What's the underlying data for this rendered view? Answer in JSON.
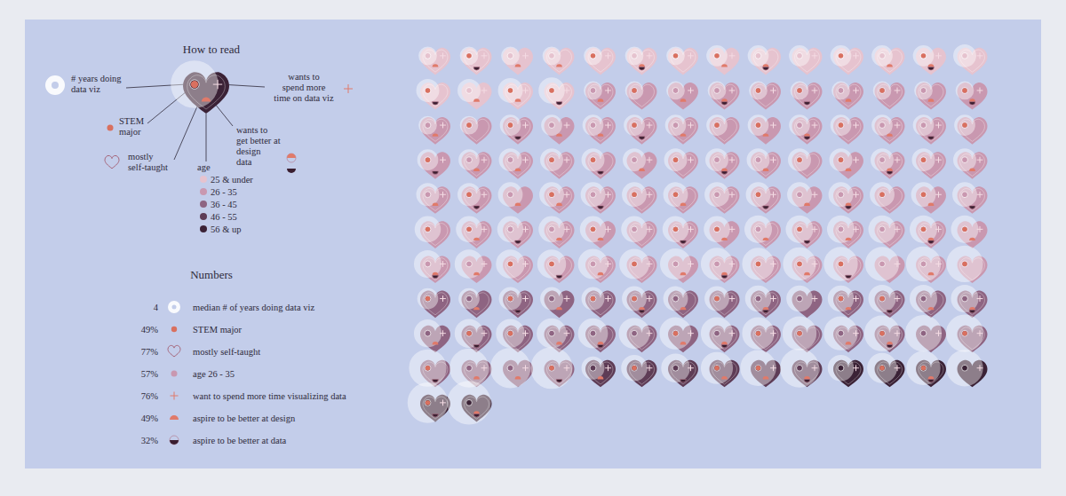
{
  "chart_data": {
    "type": "glyph_grid",
    "how_to_read": {
      "title": "How to read",
      "years": [
        "# years doing",
        "data viz"
      ],
      "stem": [
        "STEM",
        "major"
      ],
      "self_taught": [
        "mostly",
        "self-taught"
      ],
      "more_time": [
        "wants to",
        "spend more",
        "time on data viz"
      ],
      "better": [
        "wants to",
        "get better at",
        "design",
        "data"
      ],
      "age": "age",
      "age_groups": [
        {
          "label": "25 & under",
          "color": "#e6c3cf"
        },
        {
          "label": "26 - 35",
          "color": "#c998b0"
        },
        {
          "label": "36 - 45",
          "color": "#8e6482"
        },
        {
          "label": "46 - 55",
          "color": "#5e3c56"
        },
        {
          "label": "56 & up",
          "color": "#3b2236"
        }
      ]
    },
    "numbers": {
      "title": "Numbers",
      "rows": [
        {
          "value": 4,
          "label": "median # of years doing data viz"
        },
        {
          "value": 49,
          "value_label": "49%",
          "label": "STEM major"
        },
        {
          "value": 77,
          "value_label": "77%",
          "label": "mostly self-taught"
        },
        {
          "value": 57,
          "value_label": "57%",
          "label": "age 26 - 35"
        },
        {
          "value": 76,
          "value_label": "76%",
          "label": "want to spend more time visualizing data"
        },
        {
          "value": 49,
          "value_label": "49%",
          "label": "aspire to be better at design"
        },
        {
          "value": 32,
          "value_label": "32%",
          "label": "aspire to be better at data"
        }
      ]
    },
    "respondents": {
      "age": [
        0,
        0,
        0,
        0,
        0,
        0,
        0,
        0,
        0,
        0,
        0,
        0,
        0,
        0,
        0,
        0,
        0,
        0,
        1,
        1,
        1,
        1,
        1,
        1,
        1,
        1,
        1,
        1,
        1,
        1,
        1,
        1,
        1,
        1,
        1,
        1,
        1,
        1,
        1,
        1,
        1,
        1,
        1,
        1,
        1,
        1,
        1,
        1,
        1,
        1,
        1,
        1,
        1,
        1,
        1,
        1,
        1,
        1,
        1,
        1,
        1,
        1,
        1,
        1,
        1,
        1,
        1,
        1,
        1,
        1,
        1,
        1,
        1,
        1,
        1,
        1,
        1,
        1,
        1,
        1,
        1,
        1,
        1,
        1,
        1,
        1,
        1,
        1,
        1,
        1,
        1,
        1,
        1,
        1,
        1,
        1,
        1,
        1,
        2,
        2,
        2,
        2,
        2,
        2,
        2,
        2,
        2,
        2,
        2,
        2,
        2,
        2,
        2,
        2,
        2,
        2,
        2,
        2,
        2,
        2,
        2,
        2,
        2,
        2,
        2,
        2,
        2,
        2,
        2,
        2,
        3,
        3,
        3,
        3,
        3,
        3,
        4,
        4,
        4,
        4,
        4,
        4
      ],
      "years": [
        1,
        1,
        1,
        1,
        1,
        1,
        1,
        2,
        2,
        2,
        2,
        2,
        2,
        3,
        3,
        3,
        4,
        5,
        1,
        1,
        1,
        1,
        1,
        1,
        1,
        1,
        1,
        1,
        1,
        1,
        2,
        2,
        2,
        2,
        2,
        2,
        2,
        2,
        2,
        2,
        2,
        2,
        2,
        2,
        3,
        3,
        3,
        3,
        3,
        3,
        3,
        3,
        3,
        3,
        3,
        3,
        3,
        3,
        4,
        4,
        4,
        4,
        4,
        4,
        4,
        4,
        4,
        4,
        4,
        4,
        5,
        5,
        5,
        5,
        5,
        5,
        5,
        5,
        6,
        6,
        6,
        6,
        6,
        6,
        6,
        7,
        7,
        7,
        8,
        8,
        9,
        10,
        10,
        11,
        12,
        12,
        13,
        15,
        2,
        2,
        3,
        3,
        3,
        4,
        4,
        4,
        5,
        5,
        5,
        6,
        6,
        6,
        6,
        7,
        7,
        8,
        8,
        9,
        10,
        10,
        10,
        12,
        12,
        14,
        15,
        16,
        16,
        18,
        20,
        22,
        3,
        5,
        7,
        10,
        14,
        18,
        5,
        8,
        12,
        15,
        20,
        25
      ],
      "stem": [
        0,
        1,
        0,
        0,
        1,
        0,
        1,
        1,
        0,
        0,
        1,
        0,
        1,
        0,
        1,
        0,
        1,
        1,
        0,
        1,
        0,
        0,
        1,
        1,
        0,
        1,
        0,
        1,
        0,
        1,
        1,
        0,
        0,
        1,
        0,
        1,
        1,
        0,
        1,
        0,
        0,
        1,
        1,
        0,
        0,
        1,
        1,
        0,
        1,
        0,
        0,
        1,
        1,
        0,
        1,
        0,
        0,
        1,
        0,
        1,
        0,
        1,
        1,
        0,
        1,
        0,
        0,
        1,
        1,
        0,
        1,
        1,
        0,
        0,
        1,
        0,
        1,
        1,
        0,
        1,
        0,
        0,
        1,
        1,
        0,
        0,
        1,
        1,
        0,
        1,
        0,
        0,
        1,
        1,
        1,
        0,
        0,
        1,
        1,
        0,
        1,
        0,
        1,
        1,
        0,
        1,
        0,
        0,
        1,
        1,
        0,
        0,
        0,
        1,
        1,
        0,
        0,
        0,
        1,
        0,
        1,
        1,
        0,
        1,
        0,
        1,
        1,
        0,
        0,
        1,
        0,
        1,
        0,
        1,
        1,
        0,
        0,
        1,
        1,
        0,
        1,
        0
      ],
      "self_taught": [
        1,
        1,
        0,
        1,
        1,
        1,
        1,
        0,
        1,
        1,
        1,
        1,
        0,
        1,
        1,
        0,
        1,
        1,
        1,
        1,
        0,
        1,
        1,
        1,
        1,
        1,
        1,
        0,
        1,
        1,
        1,
        0,
        1,
        1,
        1,
        1,
        0,
        1,
        1,
        1,
        1,
        1,
        0,
        1,
        1,
        1,
        1,
        0,
        1,
        1,
        1,
        1,
        0,
        1,
        1,
        1,
        1,
        1,
        0,
        1,
        1,
        1,
        1,
        1,
        1,
        0,
        1,
        1,
        0,
        1,
        1,
        1,
        1,
        1,
        0,
        1,
        1,
        0,
        1,
        1,
        1,
        1,
        1,
        0,
        1,
        0,
        1,
        1,
        1,
        1,
        0,
        1,
        1,
        1,
        1,
        0,
        1,
        1,
        1,
        1,
        1,
        0,
        1,
        1,
        1,
        1,
        1,
        0,
        1,
        1,
        1,
        1,
        0,
        1,
        1,
        1,
        1,
        1,
        0,
        1,
        1,
        1,
        1,
        1,
        0,
        1,
        1,
        1,
        0,
        1,
        1,
        1,
        1,
        1,
        0,
        1,
        1,
        1,
        1,
        0,
        1,
        1
      ],
      "more_time": [
        1,
        1,
        1,
        0,
        1,
        1,
        1,
        1,
        0,
        1,
        1,
        0,
        1,
        1,
        0,
        1,
        1,
        1,
        1,
        0,
        1,
        1,
        1,
        1,
        1,
        1,
        0,
        1,
        1,
        0,
        1,
        1,
        1,
        1,
        1,
        0,
        1,
        1,
        1,
        1,
        1,
        0,
        1,
        1,
        1,
        1,
        0,
        1,
        1,
        1,
        1,
        0,
        1,
        1,
        1,
        1,
        1,
        1,
        0,
        1,
        1,
        1,
        0,
        1,
        1,
        1,
        1,
        0,
        1,
        1,
        0,
        1,
        1,
        1,
        1,
        1,
        1,
        1,
        0,
        1,
        1,
        1,
        1,
        1,
        1,
        1,
        1,
        0,
        1,
        1,
        1,
        1,
        1,
        1,
        0,
        1,
        1,
        0,
        1,
        0,
        1,
        1,
        1,
        1,
        0,
        1,
        1,
        1,
        1,
        1,
        0,
        1,
        1,
        1,
        1,
        1,
        0,
        1,
        1,
        1,
        1,
        0,
        1,
        1,
        1,
        1,
        0,
        1,
        1,
        1,
        1,
        1,
        1,
        0,
        1,
        1,
        1,
        1,
        0,
        1,
        1,
        0
      ],
      "better_design": [
        1,
        0,
        1,
        1,
        0,
        1,
        0,
        1,
        1,
        0,
        0,
        1,
        1,
        0,
        0,
        1,
        1,
        0,
        1,
        0,
        1,
        1,
        0,
        0,
        1,
        0,
        1,
        1,
        1,
        0,
        0,
        1,
        1,
        0,
        1,
        0,
        1,
        1,
        0,
        1,
        0,
        0,
        0,
        1,
        1,
        0,
        0,
        1,
        0,
        1,
        1,
        0,
        1,
        1,
        0,
        1,
        1,
        0,
        1,
        1,
        0,
        0,
        1,
        0,
        0,
        1,
        1,
        0,
        1,
        0,
        0,
        1,
        0,
        1,
        1,
        0,
        0,
        1,
        1,
        0,
        1,
        0,
        1,
        1,
        1,
        1,
        0,
        0,
        1,
        0,
        1,
        1,
        0,
        1,
        0,
        0,
        1,
        0,
        0,
        1,
        0,
        1,
        0,
        1,
        1,
        0,
        1,
        0,
        1,
        0,
        1,
        1,
        1,
        0,
        0,
        1,
        1,
        0,
        1,
        1,
        0,
        0,
        1,
        1,
        0,
        0,
        0,
        1,
        1,
        0,
        1,
        0,
        0,
        1,
        1,
        1,
        0,
        0,
        1,
        0,
        0,
        1
      ],
      "better_data": [
        0,
        1,
        0,
        0,
        0,
        1,
        0,
        0,
        1,
        0,
        0,
        0,
        1,
        0,
        1,
        0,
        0,
        1,
        0,
        0,
        0,
        1,
        0,
        1,
        0,
        0,
        0,
        1,
        0,
        0,
        1,
        0,
        0,
        1,
        0,
        0,
        0,
        1,
        0,
        0,
        1,
        0,
        1,
        0,
        0,
        0,
        1,
        0,
        0,
        1,
        0,
        0,
        0,
        1,
        0,
        0,
        0,
        1,
        0,
        0,
        1,
        0,
        0,
        0,
        1,
        0,
        1,
        0,
        0,
        1,
        0,
        0,
        1,
        0,
        0,
        0,
        1,
        0,
        0,
        1,
        0,
        0,
        1,
        0,
        1,
        0,
        0,
        1,
        0,
        0,
        0,
        1,
        0,
        0,
        1,
        0,
        0,
        0,
        0,
        0,
        1,
        0,
        0,
        1,
        0,
        0,
        1,
        0,
        0,
        1,
        0,
        1,
        0,
        1,
        0,
        0,
        1,
        0,
        0,
        1,
        0,
        0,
        0,
        1,
        0,
        0,
        1,
        0,
        0,
        1,
        0,
        0,
        1,
        0,
        0,
        1,
        0,
        0,
        1,
        0,
        1,
        1
      ]
    }
  }
}
